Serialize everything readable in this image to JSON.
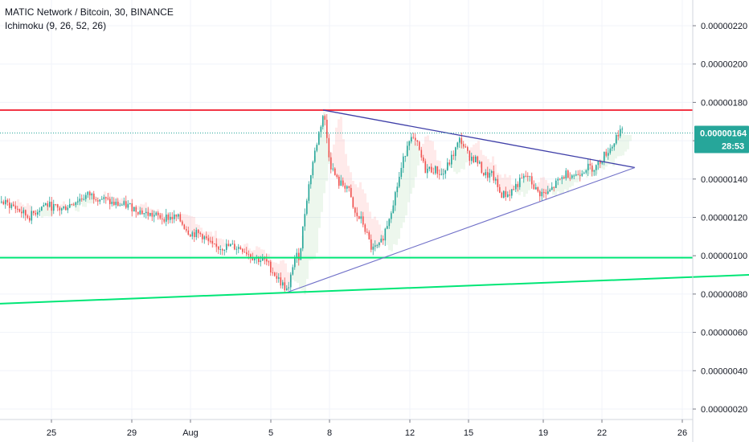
{
  "header": {
    "title": "MATIC Network / Bitcoin, 30, BINANCE",
    "indicator": "Ichimoku (9, 26, 52, 26)"
  },
  "price_badge": {
    "value": "0.00000164",
    "countdown": "28:53",
    "color": "#26a69a"
  },
  "chart_data": {
    "type": "candlestick",
    "grid": true,
    "ylim": [
      1.2e-07,
      2.32e-06
    ],
    "y_ticks": [
      "0.00000220",
      "0.00000200",
      "0.00000180",
      "0.00000160",
      "0.00000140",
      "0.00000120",
      "0.00000100",
      "0.00000080",
      "0.00000060",
      "0.00000040",
      "0.00000020"
    ],
    "y_tick_values": [
      2.2e-06,
      2e-06,
      1.8e-06,
      1.6e-06,
      1.4e-06,
      1.2e-06,
      1e-06,
      8e-07,
      6e-07,
      4e-07,
      2e-07
    ],
    "x_ticks": [
      "25",
      "29",
      "Aug",
      "5",
      "8",
      "12",
      "15",
      "19",
      "22",
      "26"
    ],
    "current_price": 1.64e-06,
    "price_path": [
      [
        0,
        1.28e-06
      ],
      [
        15,
        1.26e-06
      ],
      [
        35,
        1.2e-06
      ],
      [
        55,
        1.27e-06
      ],
      [
        75,
        1.24e-06
      ],
      [
        95,
        1.29e-06
      ],
      [
        110,
        1.32e-06
      ],
      [
        125,
        1.3e-06
      ],
      [
        140,
        1.27e-06
      ],
      [
        160,
        1.26e-06
      ],
      [
        180,
        1.22e-06
      ],
      [
        200,
        1.2e-06
      ],
      [
        220,
        1.2e-06
      ],
      [
        235,
        1.12e-06
      ],
      [
        250,
        1.11e-06
      ],
      [
        265,
        1.04e-06
      ],
      [
        285,
        1.05e-06
      ],
      [
        300,
        1.04e-06
      ],
      [
        315,
        9.9e-07
      ],
      [
        330,
        9.7e-07
      ],
      [
        345,
        8.8e-07
      ],
      [
        358,
        8.1e-07
      ],
      [
        365,
        9.9e-07
      ],
      [
        372,
        1e-06
      ],
      [
        380,
        1.28e-06
      ],
      [
        388,
        1.48e-06
      ],
      [
        396,
        1.64e-06
      ],
      [
        402,
        1.75e-06
      ],
      [
        410,
        1.48e-06
      ],
      [
        420,
        1.38e-06
      ],
      [
        432,
        1.36e-06
      ],
      [
        440,
        1.22e-06
      ],
      [
        450,
        1.18e-06
      ],
      [
        462,
        1.03e-06
      ],
      [
        472,
        1.05e-06
      ],
      [
        482,
        1.18e-06
      ],
      [
        492,
        1.34e-06
      ],
      [
        500,
        1.48e-06
      ],
      [
        508,
        1.62e-06
      ],
      [
        518,
        1.58e-06
      ],
      [
        528,
        1.45e-06
      ],
      [
        540,
        1.45e-06
      ],
      [
        550,
        1.42e-06
      ],
      [
        560,
        1.5e-06
      ],
      [
        572,
        1.61e-06
      ],
      [
        582,
        1.52e-06
      ],
      [
        592,
        1.5e-06
      ],
      [
        602,
        1.42e-06
      ],
      [
        612,
        1.42e-06
      ],
      [
        622,
        1.32e-06
      ],
      [
        632,
        1.32e-06
      ],
      [
        642,
        1.37e-06
      ],
      [
        655,
        1.42e-06
      ],
      [
        668,
        1.33e-06
      ],
      [
        680,
        1.32e-06
      ],
      [
        692,
        1.38e-06
      ],
      [
        704,
        1.43e-06
      ],
      [
        716,
        1.42e-06
      ],
      [
        728,
        1.46e-06
      ],
      [
        740,
        1.46e-06
      ],
      [
        752,
        1.53e-06
      ],
      [
        762,
        1.58e-06
      ],
      [
        770,
        1.66e-06
      ],
      [
        776,
        1.63e-06
      ]
    ]
  },
  "annotations": {
    "resistance_red": {
      "price": 1.76e-06,
      "color": "#f23645"
    },
    "support_green": {
      "price": 9.9e-07,
      "color": "#00e676"
    },
    "trend_green": {
      "from": [
        0,
        7.5e-07
      ],
      "to": [
        932,
        9e-07
      ],
      "color": "#00e676"
    },
    "triangle_upper": {
      "from": [
        402,
        1.76e-06
      ],
      "to": [
        790,
        1.46e-06
      ],
      "color": "#3f3fa8"
    },
    "triangle_lower": {
      "from": [
        358,
        8.1e-07
      ],
      "to": [
        790,
        1.46e-06
      ],
      "color": "#7070c8"
    }
  },
  "colors": {
    "up": "#26a69a",
    "down": "#ef5350",
    "grid": "#f0f3fa",
    "axis_text": "#131722"
  }
}
